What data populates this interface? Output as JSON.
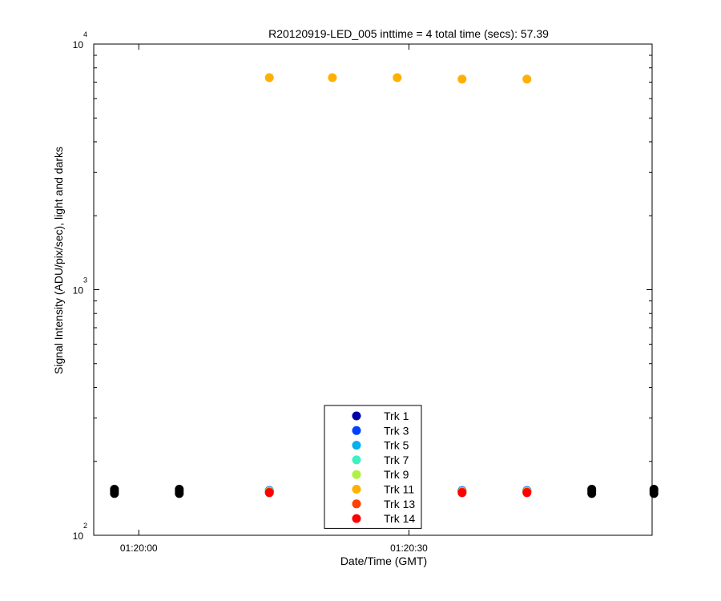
{
  "chart_data": {
    "type": "scatter",
    "title": "R20120919-LED_005 inttime = 4 total time (secs): 57.39",
    "xlabel": "Date/Time (GMT)",
    "ylabel": "Signal Intensity (ADU/pix/sec), light and darks",
    "x_range": [
      "01:19:55",
      "01:20:57"
    ],
    "ylim": [
      100,
      10000
    ],
    "y_scale": "log",
    "x_ticks": [
      "01:20:00",
      "01:20:30"
    ],
    "y_ticks": [
      {
        "value": 100,
        "base": "10",
        "exp": "2"
      },
      {
        "value": 1000,
        "base": "10",
        "exp": "3"
      },
      {
        "value": 10000,
        "base": "10",
        "exp": "4"
      }
    ],
    "grid": false,
    "legend_position": "bottom-center",
    "series": [
      {
        "name": "Trk 1",
        "color": "#0000aa",
        "x": [
          "01:20:14.5",
          "01:20:21.5",
          "01:20:28.7",
          "01:20:35.9",
          "01:20:43.1"
        ],
        "y": [
          152,
          152,
          152,
          152,
          152
        ]
      },
      {
        "name": "Trk 3",
        "color": "#0040ff",
        "x": [
          "01:20:14.5",
          "01:20:21.5",
          "01:20:28.7",
          "01:20:35.9",
          "01:20:43.1"
        ],
        "y": [
          152,
          152,
          152,
          152,
          152
        ]
      },
      {
        "name": "Trk 5",
        "color": "#00b0f0",
        "x": [
          "01:20:14.5",
          "01:20:21.5",
          "01:20:28.7",
          "01:20:35.9",
          "01:20:43.1"
        ],
        "y": [
          151.5,
          151.5,
          151.5,
          151.5,
          151.5
        ]
      },
      {
        "name": "Trk 7",
        "color": "#40f0c0",
        "x": [
          "01:20:14.5",
          "01:20:21.5",
          "01:20:28.7",
          "01:20:35.9",
          "01:20:43.1"
        ],
        "y": [
          151,
          151,
          151,
          151,
          151
        ]
      },
      {
        "name": "Trk 9",
        "color": "#b0f040",
        "x": [
          "01:20:14.5",
          "01:20:21.5",
          "01:20:28.7",
          "01:20:35.9",
          "01:20:43.1"
        ],
        "y": [
          151,
          151,
          151,
          151,
          151
        ]
      },
      {
        "name": "Trk 11",
        "color": "#ffb000",
        "x": [
          "01:20:14.5",
          "01:20:21.5",
          "01:20:28.7",
          "01:20:35.9",
          "01:20:43.1"
        ],
        "y": [
          7300,
          7300,
          7300,
          7200,
          7200
        ]
      },
      {
        "name": "Trk 13",
        "color": "#ff4000",
        "x": [
          "01:20:14.5",
          "01:20:21.5",
          "01:20:28.7",
          "01:20:35.9",
          "01:20:43.1"
        ],
        "y": [
          150,
          150,
          150,
          150,
          150
        ]
      },
      {
        "name": "Trk 14",
        "color": "#ff0000",
        "x": [
          "01:20:14.5",
          "01:20:21.5",
          "01:20:28.7",
          "01:20:35.9",
          "01:20:43.1"
        ],
        "y": [
          149,
          149,
          149,
          149,
          149
        ]
      },
      {
        "color": "#000000",
        "x": [
          "01:19:57.3",
          "01:19:57.3",
          "01:19:57.3",
          "01:20:04.5",
          "01:20:04.5",
          "01:20:04.5",
          "01:20:50.3",
          "01:20:50.3",
          "01:20:50.3",
          "01:20:57.2",
          "01:20:57.2",
          "01:20:57.2"
        ],
        "y": [
          148,
          151,
          154,
          148,
          151,
          154,
          148,
          151,
          154,
          148,
          151,
          154
        ]
      }
    ]
  }
}
